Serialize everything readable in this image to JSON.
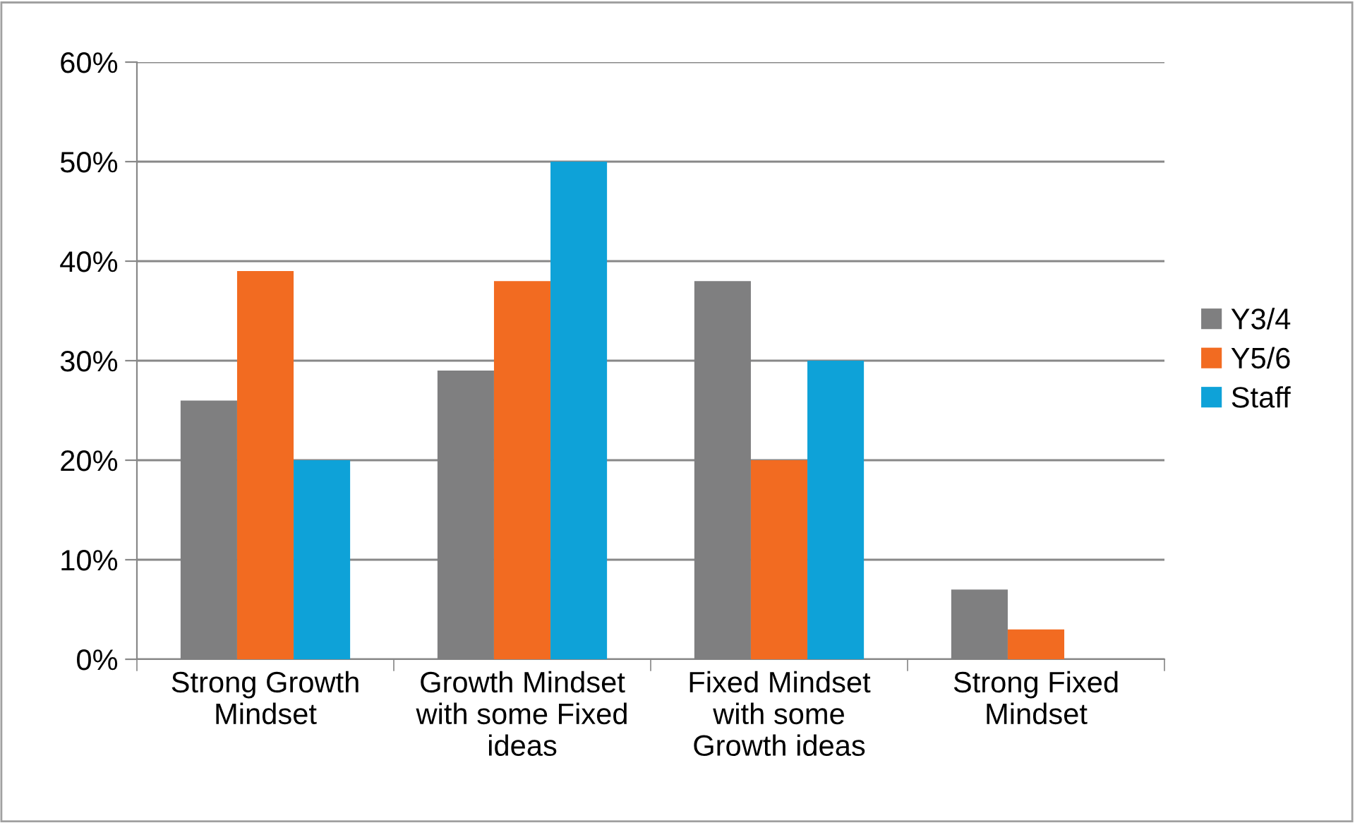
{
  "chart_data": {
    "type": "bar",
    "categories": [
      "Strong Growth\nMindset",
      "Growth Mindset\nwith some Fixed\nideas",
      "Fixed Mindset\nwith some\nGrowth ideas",
      "Strong Fixed\nMindset"
    ],
    "series": [
      {
        "name": "Y3/4",
        "color": "#7f7f80",
        "values": [
          26,
          29,
          38,
          7
        ]
      },
      {
        "name": "Y5/6",
        "color": "#f26b21",
        "values": [
          39,
          38,
          20,
          3
        ]
      },
      {
        "name": "Staff",
        "color": "#0ea2d8",
        "values": [
          20,
          50,
          30,
          0
        ]
      }
    ],
    "ylim": [
      0,
      60
    ],
    "yticks": [
      {
        "value": 0,
        "label": "0%"
      },
      {
        "value": 10,
        "label": "10%"
      },
      {
        "value": 20,
        "label": "20%"
      },
      {
        "value": 30,
        "label": "30%"
      },
      {
        "value": 40,
        "label": "40%"
      },
      {
        "value": 50,
        "label": "50%"
      },
      {
        "value": 60,
        "label": "60%"
      }
    ],
    "grid": "y",
    "legend": "right"
  }
}
